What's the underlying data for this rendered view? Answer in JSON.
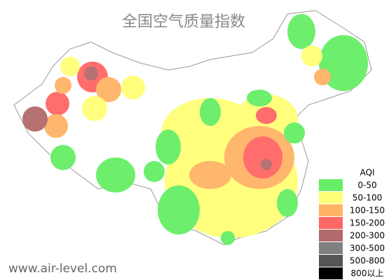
{
  "title": "全国空气质量指数",
  "legend": {
    "title": "AQI",
    "items": [
      {
        "label": "0-50",
        "color": "#66ee66"
      },
      {
        "label": "50-100",
        "color": "#ffff77"
      },
      {
        "label": "100-150",
        "color": "#ffb366"
      },
      {
        "label": "150-200",
        "color": "#ff6666"
      },
      {
        "label": "200-300",
        "color": "#b36b6b"
      },
      {
        "label": "300-500",
        "color": "#808080"
      },
      {
        "label": "500-800",
        "color": "#555555"
      },
      {
        "label": "800以上",
        "color": "#000000"
      }
    ]
  },
  "footer": "www.air-level.com"
}
